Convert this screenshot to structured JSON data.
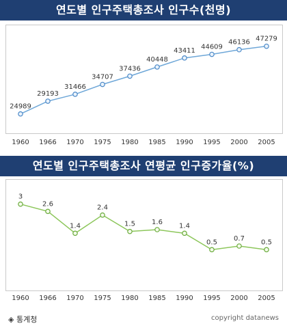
{
  "chart_data": [
    {
      "type": "line",
      "title": "연도별 인구주택총조사 인구수(천명)",
      "categories": [
        "1960",
        "1966",
        "1970",
        "1975",
        "1980",
        "1985",
        "1990",
        "1995",
        "2000",
        "2005"
      ],
      "series": [
        {
          "values": [
            24989,
            29193,
            31466,
            34707,
            37436,
            40448,
            43411,
            44609,
            46136,
            47279
          ]
        }
      ],
      "data_labels": [
        "24989",
        "29193",
        "31466",
        "34707",
        "37436",
        "40448",
        "43411",
        "44609",
        "46136",
        "47279"
      ],
      "ylim": [
        22000,
        49000
      ],
      "grid": false,
      "colors": {
        "line": "#6ea7d8",
        "marker_fill": "#eaf3fb",
        "marker_stroke": "#4a88c8"
      }
    },
    {
      "type": "line",
      "title": "연도별 인구주택총조사 연평균 인구증가율(%)",
      "categories": [
        "1960",
        "1966",
        "1970",
        "1975",
        "1980",
        "1985",
        "1990",
        "1995",
        "2000",
        "2005"
      ],
      "series": [
        {
          "values": [
            3,
            2.6,
            1.4,
            2.4,
            1.5,
            1.6,
            1.4,
            0.5,
            0.7,
            0.5
          ]
        }
      ],
      "data_labels": [
        "3",
        "2.6",
        "1.4",
        "2.4",
        "1.5",
        "1.6",
        "1.4",
        "0.5",
        "0.7",
        "0.5"
      ],
      "ylim": [
        -0.5,
        3.4
      ],
      "grid": false,
      "colors": {
        "line": "#8cc65a",
        "marker_fill": "#f4fbea",
        "marker_stroke": "#6aab3c"
      }
    }
  ],
  "footer": {
    "source": "◈ 통계청",
    "copyright": "copyright datanews"
  },
  "colors": {
    "banner": "#1f3f72",
    "panel_border": "#c9c9c9"
  }
}
